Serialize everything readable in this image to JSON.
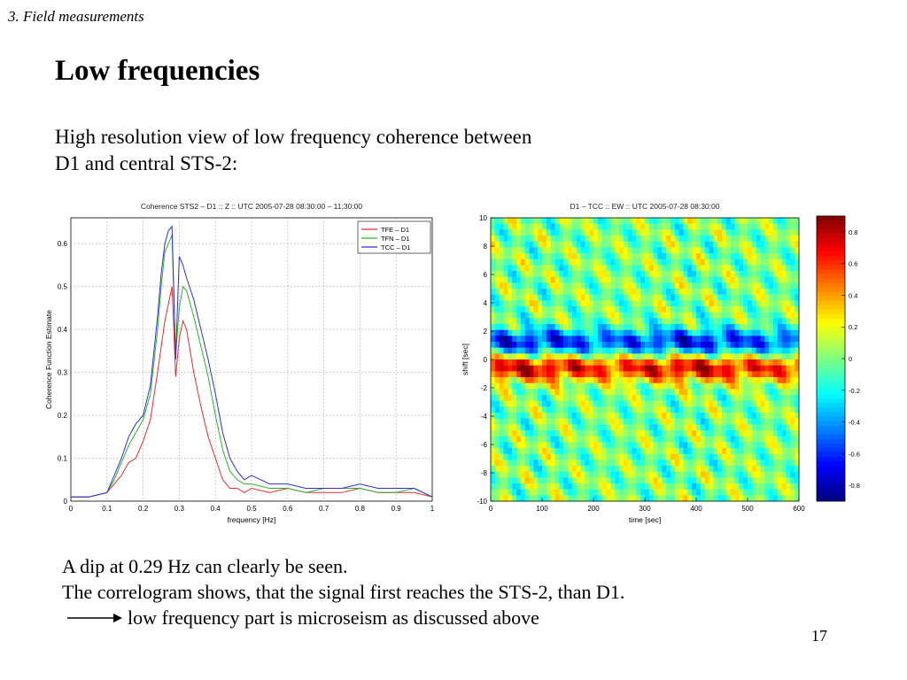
{
  "slide": {
    "section": "3. Field measurements",
    "title": "Low frequencies",
    "intro_line1": "High resolution view of low frequency coherence between",
    "intro_line2": "D1 and central STS-2:",
    "note_line1": "A dip at 0.29 Hz can clearly be seen.",
    "note_line2": "The correlogram shows, that the signal first reaches the STS-2, than D1.",
    "note_line3": "low frequency part is microseism as discussed above",
    "page_number": "17"
  },
  "chart_data": [
    {
      "type": "line",
      "title": "Coherence STS2 – D1 :: Z :: UTC 2005-07-28 08:30:00 – 11:30:00",
      "xlabel": "frequency [Hz]",
      "ylabel": "Coherence Function Estimate",
      "xlim": [
        0,
        1
      ],
      "ylim": [
        0,
        0.66
      ],
      "xticks": [
        "0",
        "0.1",
        "0.2",
        "0.3",
        "0.4",
        "0.5",
        "0.6",
        "0.7",
        "0.8",
        "0.9",
        "1"
      ],
      "yticks": [
        "0",
        "0.1",
        "0.2",
        "0.3",
        "0.4",
        "0.5",
        "0.6"
      ],
      "grid": true,
      "legend_position": "top-right",
      "x": [
        0,
        0.05,
        0.1,
        0.12,
        0.14,
        0.16,
        0.18,
        0.2,
        0.22,
        0.24,
        0.25,
        0.26,
        0.27,
        0.28,
        0.29,
        0.3,
        0.31,
        0.32,
        0.34,
        0.36,
        0.38,
        0.4,
        0.42,
        0.44,
        0.46,
        0.48,
        0.5,
        0.55,
        0.6,
        0.65,
        0.7,
        0.75,
        0.8,
        0.85,
        0.9,
        0.95,
        1.0
      ],
      "series": [
        {
          "name": "TFE – D1",
          "color": "#e03030",
          "values": [
            0.01,
            0.01,
            0.02,
            0.04,
            0.06,
            0.09,
            0.1,
            0.14,
            0.19,
            0.3,
            0.36,
            0.42,
            0.46,
            0.5,
            0.29,
            0.38,
            0.42,
            0.4,
            0.3,
            0.22,
            0.15,
            0.1,
            0.05,
            0.03,
            0.03,
            0.02,
            0.03,
            0.02,
            0.03,
            0.02,
            0.02,
            0.02,
            0.03,
            0.02,
            0.02,
            0.02,
            0.01
          ]
        },
        {
          "name": "TFN – D1",
          "color": "#30b030",
          "values": [
            0.01,
            0.01,
            0.02,
            0.05,
            0.09,
            0.13,
            0.16,
            0.19,
            0.25,
            0.4,
            0.5,
            0.58,
            0.6,
            0.62,
            0.34,
            0.45,
            0.5,
            0.49,
            0.43,
            0.36,
            0.29,
            0.2,
            0.12,
            0.07,
            0.05,
            0.04,
            0.04,
            0.03,
            0.03,
            0.02,
            0.03,
            0.03,
            0.03,
            0.02,
            0.02,
            0.03,
            0.01
          ]
        },
        {
          "name": "TCC – D1",
          "color": "#3030d0",
          "values": [
            0.01,
            0.01,
            0.02,
            0.06,
            0.1,
            0.15,
            0.18,
            0.2,
            0.27,
            0.43,
            0.53,
            0.6,
            0.63,
            0.64,
            0.33,
            0.57,
            0.55,
            0.52,
            0.47,
            0.4,
            0.33,
            0.25,
            0.16,
            0.1,
            0.07,
            0.05,
            0.06,
            0.04,
            0.04,
            0.03,
            0.03,
            0.03,
            0.04,
            0.03,
            0.03,
            0.03,
            0.01
          ]
        }
      ]
    },
    {
      "type": "heatmap",
      "title": "D1 – TCC :: EW :: UTC 2005-07-28 08:30:00",
      "xlabel": "time [sec]",
      "ylabel": "shift [sec]",
      "xlim": [
        0,
        600
      ],
      "ylim": [
        -10,
        10
      ],
      "xticks": [
        "0",
        "100",
        "200",
        "300",
        "400",
        "500",
        "600"
      ],
      "yticks": [
        "10",
        "8",
        "6",
        "4",
        "2",
        "0",
        "-2",
        "-4",
        "-6",
        "-8",
        "-10"
      ],
      "colorbar_ticks": [
        "0.8",
        "0.6",
        "0.4",
        "0.2",
        "0",
        "-0.2",
        "-0.4",
        "-0.6",
        "-0.8"
      ],
      "colorbar_range": [
        -0.9,
        0.9
      ]
    }
  ]
}
